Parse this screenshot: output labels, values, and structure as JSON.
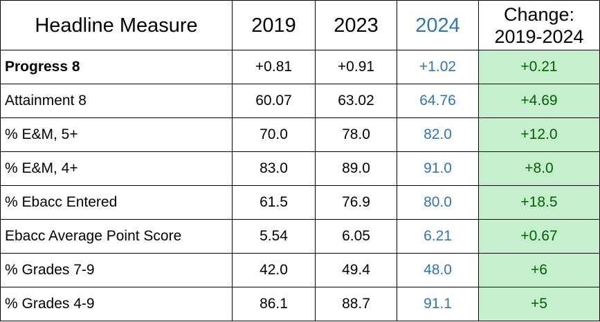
{
  "table": {
    "headers": {
      "measure": "Headline Measure",
      "y2019": "2019",
      "y2023": "2023",
      "y2024": "2024",
      "change_line1": "Change:",
      "change_line2": "2019-2024"
    },
    "rows": [
      {
        "measure": "Progress 8",
        "bold": true,
        "y2019": "+0.81",
        "y2023": "+0.91",
        "y2024": "+1.02",
        "change": "+0.21"
      },
      {
        "measure": "Attainment 8",
        "bold": false,
        "y2019": "60.07",
        "y2023": "63.02",
        "y2024": "64.76",
        "change": "+4.69"
      },
      {
        "measure": "% E&M, 5+",
        "bold": false,
        "y2019": "70.0",
        "y2023": "78.0",
        "y2024": "82.0",
        "change": "+12.0"
      },
      {
        "measure": "% E&M, 4+",
        "bold": false,
        "y2019": "83.0",
        "y2023": "89.0",
        "y2024": "91.0",
        "change": "+8.0"
      },
      {
        "measure": "% Ebacc Entered",
        "bold": false,
        "y2019": "61.5",
        "y2023": "76.9",
        "y2024": "80.0",
        "change": "+18.5"
      },
      {
        "measure": "Ebacc Average Point Score",
        "bold": false,
        "y2019": "5.54",
        "y2023": "6.05",
        "y2024": "6.21",
        "change": "+0.67"
      },
      {
        "measure": "% Grades 7-9",
        "bold": false,
        "y2019": "42.0",
        "y2023": "49.4",
        "y2024": "48.0",
        "change": "+6"
      },
      {
        "measure": "% Grades 4-9",
        "bold": false,
        "y2019": "86.1",
        "y2023": "88.7",
        "y2024": "91.1",
        "change": "+5"
      }
    ],
    "colors": {
      "year_2024_text": "#2f75b5",
      "change_fill": "#c6efce",
      "change_text": "#006100"
    }
  }
}
